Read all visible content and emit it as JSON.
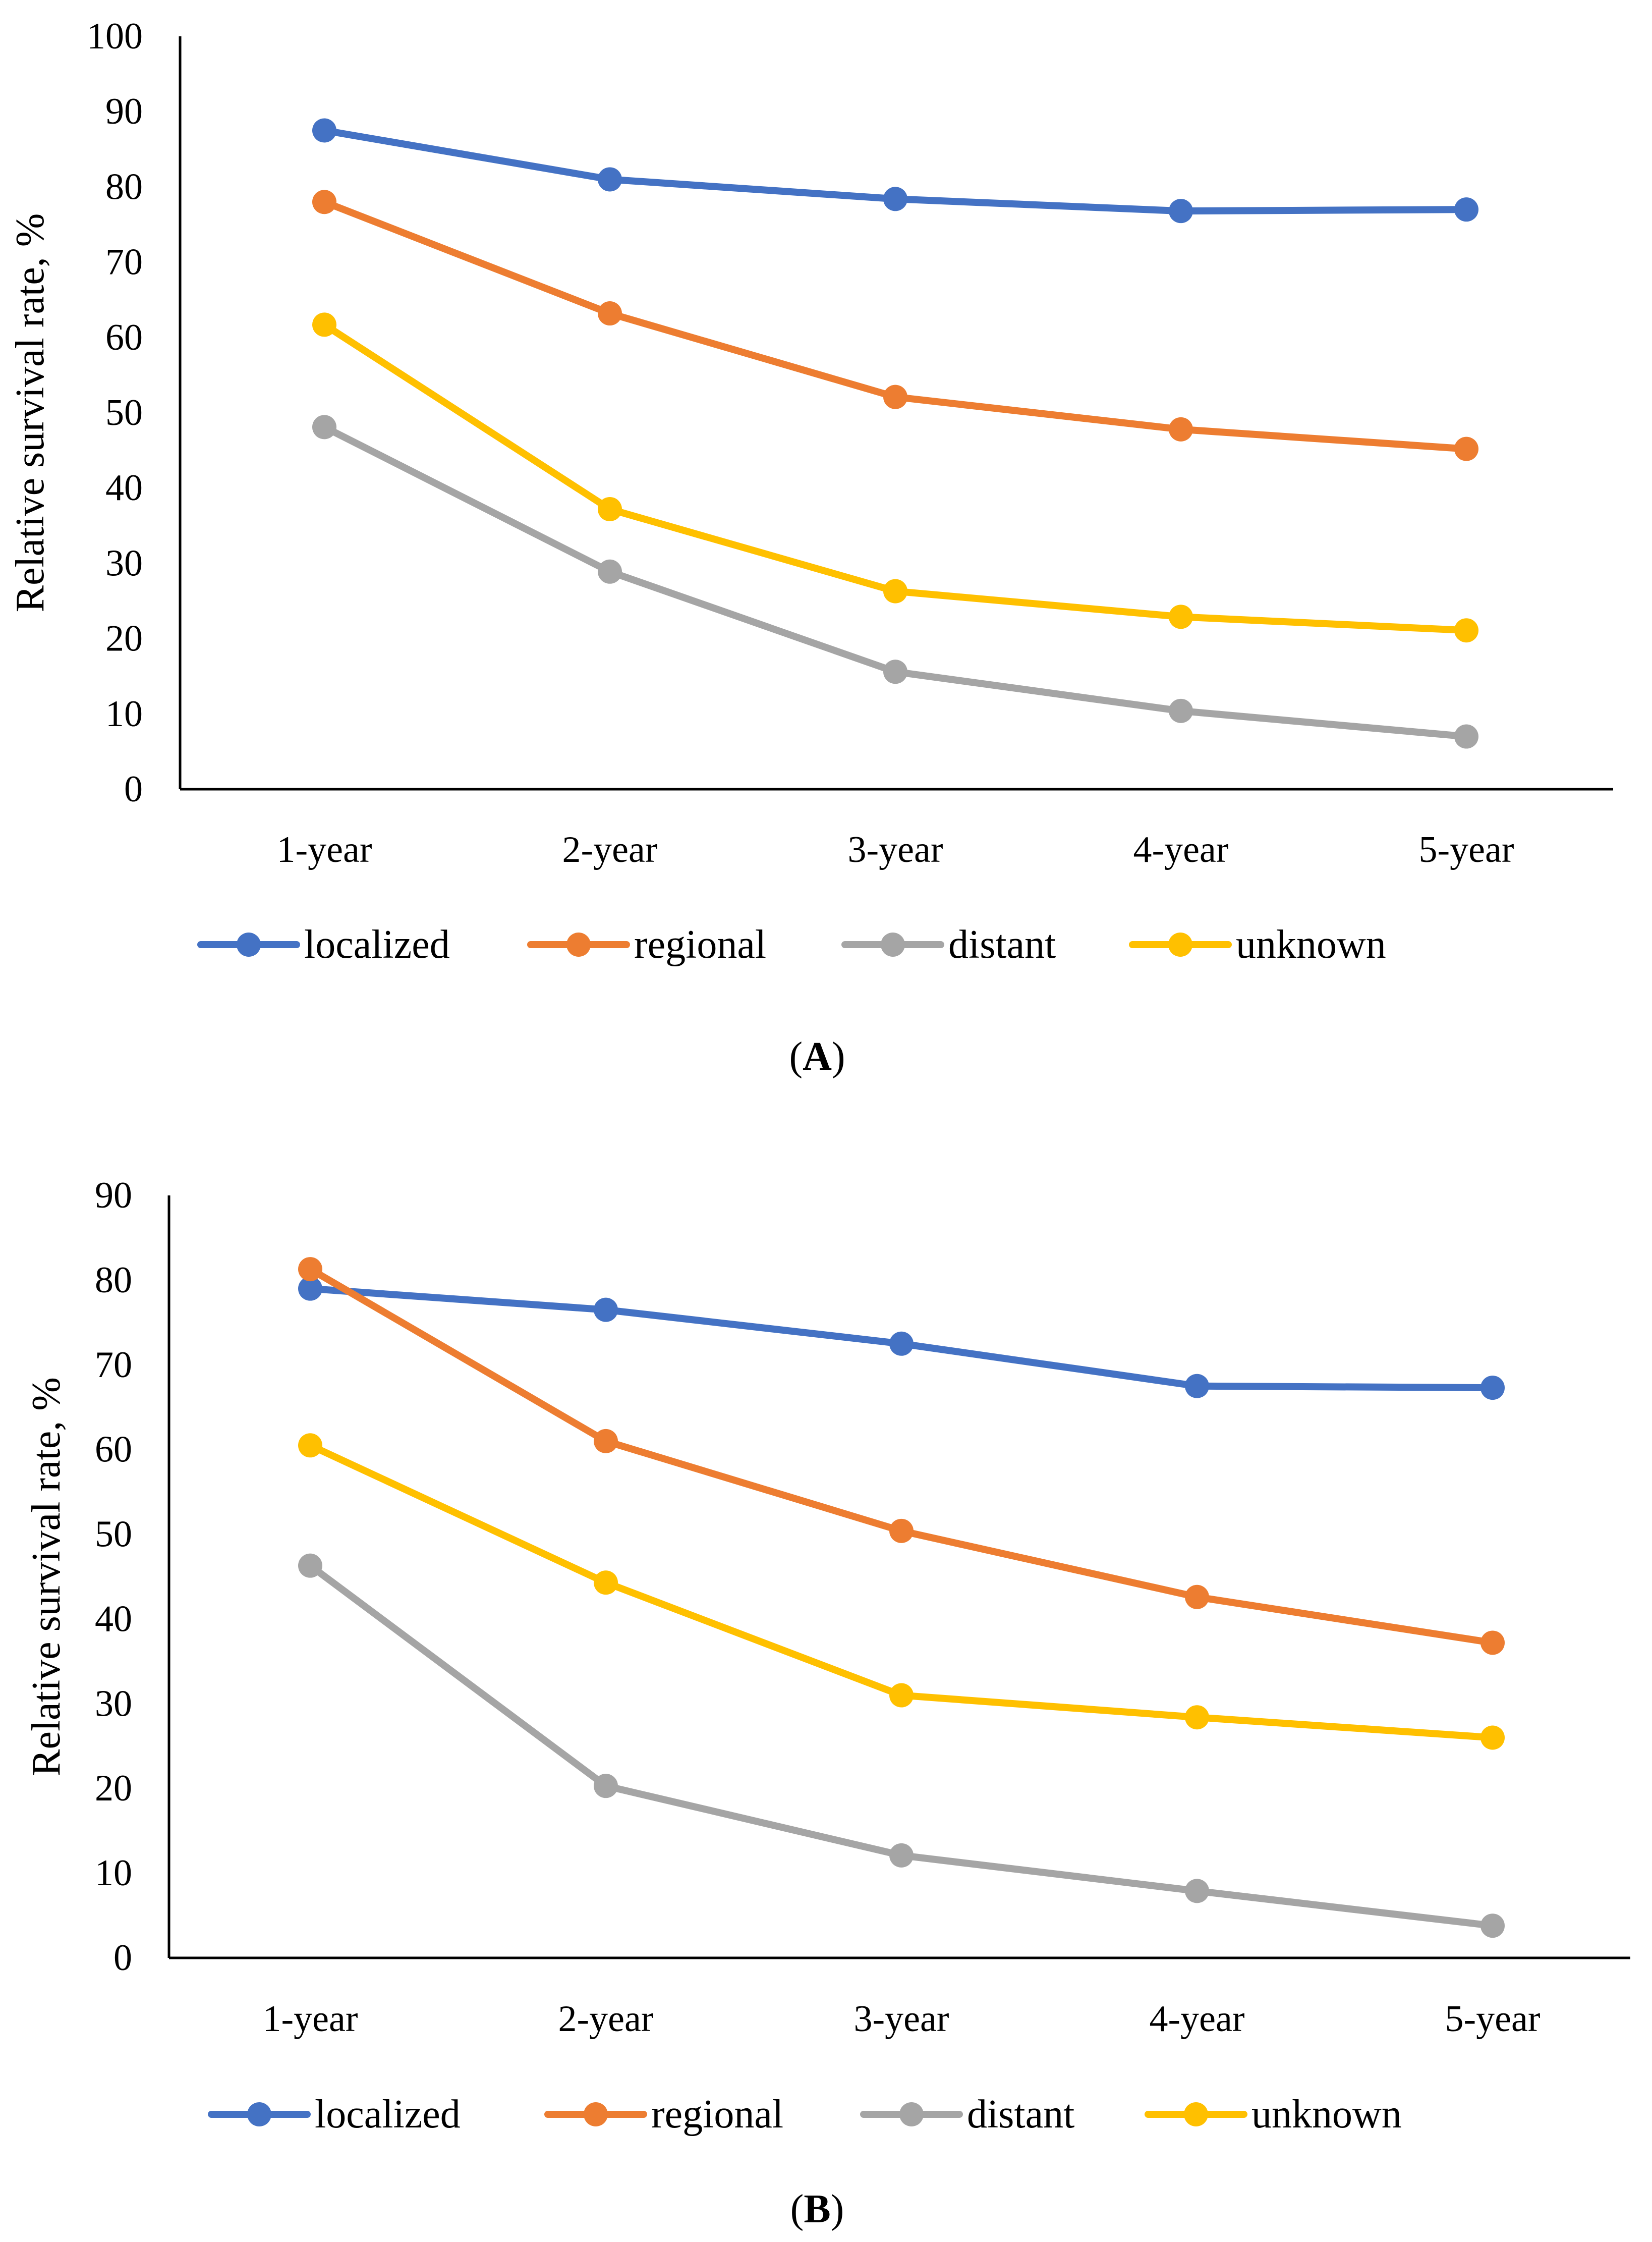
{
  "chart_data": [
    {
      "type": "line",
      "panel_label": "A",
      "categories": [
        "1-year",
        "2-year",
        "3-year",
        "4-year",
        "5-year"
      ],
      "ylabel": "Relative survival rate, %",
      "xlabel": "",
      "ylim": [
        0,
        100
      ],
      "yticks": [
        0,
        10,
        20,
        30,
        40,
        50,
        60,
        70,
        80,
        90,
        100
      ],
      "legend_position": "bottom",
      "grid": false,
      "series": [
        {
          "name": "localized",
          "color": "#4472C4",
          "values": [
            87.5,
            81.0,
            78.4,
            76.8,
            77.0
          ]
        },
        {
          "name": "regional",
          "color": "#ED7D31",
          "values": [
            78.0,
            63.2,
            52.1,
            47.8,
            45.2
          ]
        },
        {
          "name": "distant",
          "color": "#A5A5A5",
          "values": [
            48.1,
            28.9,
            15.6,
            10.4,
            7.0
          ]
        },
        {
          "name": "unknown",
          "color": "#FFC000",
          "values": [
            61.7,
            37.2,
            26.3,
            22.9,
            21.1
          ]
        }
      ]
    },
    {
      "type": "line",
      "panel_label": "B",
      "categories": [
        "1-year",
        "2-year",
        "3-year",
        "4-year",
        "5-year"
      ],
      "ylabel": "Relative survival rate, %",
      "xlabel": "",
      "ylim": [
        0,
        90
      ],
      "yticks": [
        0,
        10,
        20,
        30,
        40,
        50,
        60,
        70,
        80,
        90
      ],
      "legend_position": "bottom",
      "grid": false,
      "series": [
        {
          "name": "localized",
          "color": "#4472C4",
          "values": [
            79.0,
            76.5,
            72.5,
            67.5,
            67.3
          ]
        },
        {
          "name": "regional",
          "color": "#ED7D31",
          "values": [
            81.3,
            61.0,
            50.4,
            42.6,
            37.2
          ]
        },
        {
          "name": "distant",
          "color": "#A5A5A5",
          "values": [
            46.3,
            20.3,
            12.1,
            7.9,
            3.8
          ]
        },
        {
          "name": "unknown",
          "color": "#FFC000",
          "values": [
            60.5,
            44.3,
            31.0,
            28.4,
            26.0
          ]
        }
      ]
    }
  ]
}
